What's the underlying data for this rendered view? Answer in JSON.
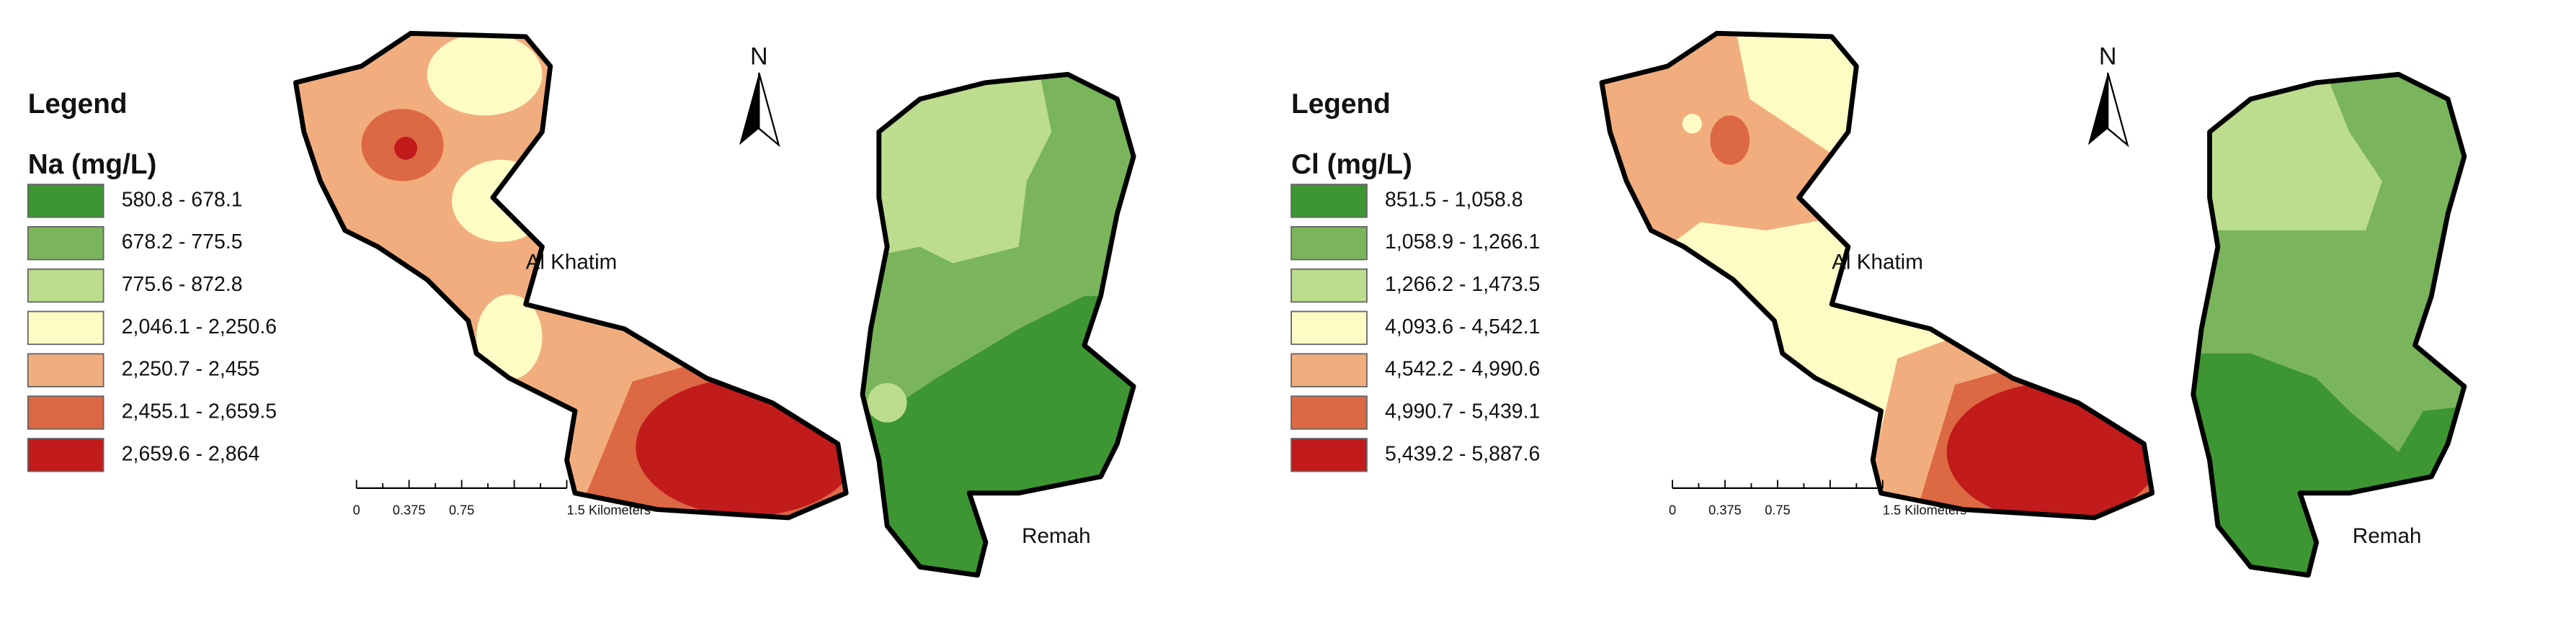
{
  "panels": [
    {
      "legend_title": "Legend",
      "variable": "Na (mg/L)",
      "classes": [
        {
          "label": "580.8 - 678.1",
          "color": "#3d9632"
        },
        {
          "label": "678.2 - 775.5",
          "color": "#7ab55c"
        },
        {
          "label": "775.6 - 872.8",
          "color": "#bcdc8e"
        },
        {
          "label": "2,046.1 - 2,250.6",
          "color": "#fefcc4"
        },
        {
          "label": "2,250.7 - 2,455",
          "color": "#f2ad7e"
        },
        {
          "label": "2,455.1 - 2,659.5",
          "color": "#dd6844"
        },
        {
          "label": "2,659.6 - 2,864",
          "color": "#c21b1b"
        }
      ],
      "places": [
        "Al Khatim",
        "Remah"
      ],
      "north": "N",
      "scale_labels": [
        "0",
        "0.375",
        "0.75",
        "1.5 Kilometers"
      ]
    },
    {
      "legend_title": "Legend",
      "variable": "Cl (mg/L)",
      "classes": [
        {
          "label": "851.5 - 1,058.8",
          "color": "#3d9632"
        },
        {
          "label": "1,058.9 - 1,266.1",
          "color": "#7ab55c"
        },
        {
          "label": "1,266.2 - 1,473.5",
          "color": "#bcdc8e"
        },
        {
          "label": "4,093.6 - 4,542.1",
          "color": "#fefcc4"
        },
        {
          "label": "4,542.2 - 4,990.6",
          "color": "#f2ad7e"
        },
        {
          "label": "4,990.7 - 5,439.1",
          "color": "#dd6844"
        },
        {
          "label": "5,439.2 - 5,887.6",
          "color": "#c21b1b"
        }
      ],
      "places": [
        "Al Khatim",
        "Remah"
      ],
      "north": "N",
      "scale_labels": [
        "0",
        "0.375",
        "0.75",
        "1.5 Kilometers"
      ]
    }
  ]
}
